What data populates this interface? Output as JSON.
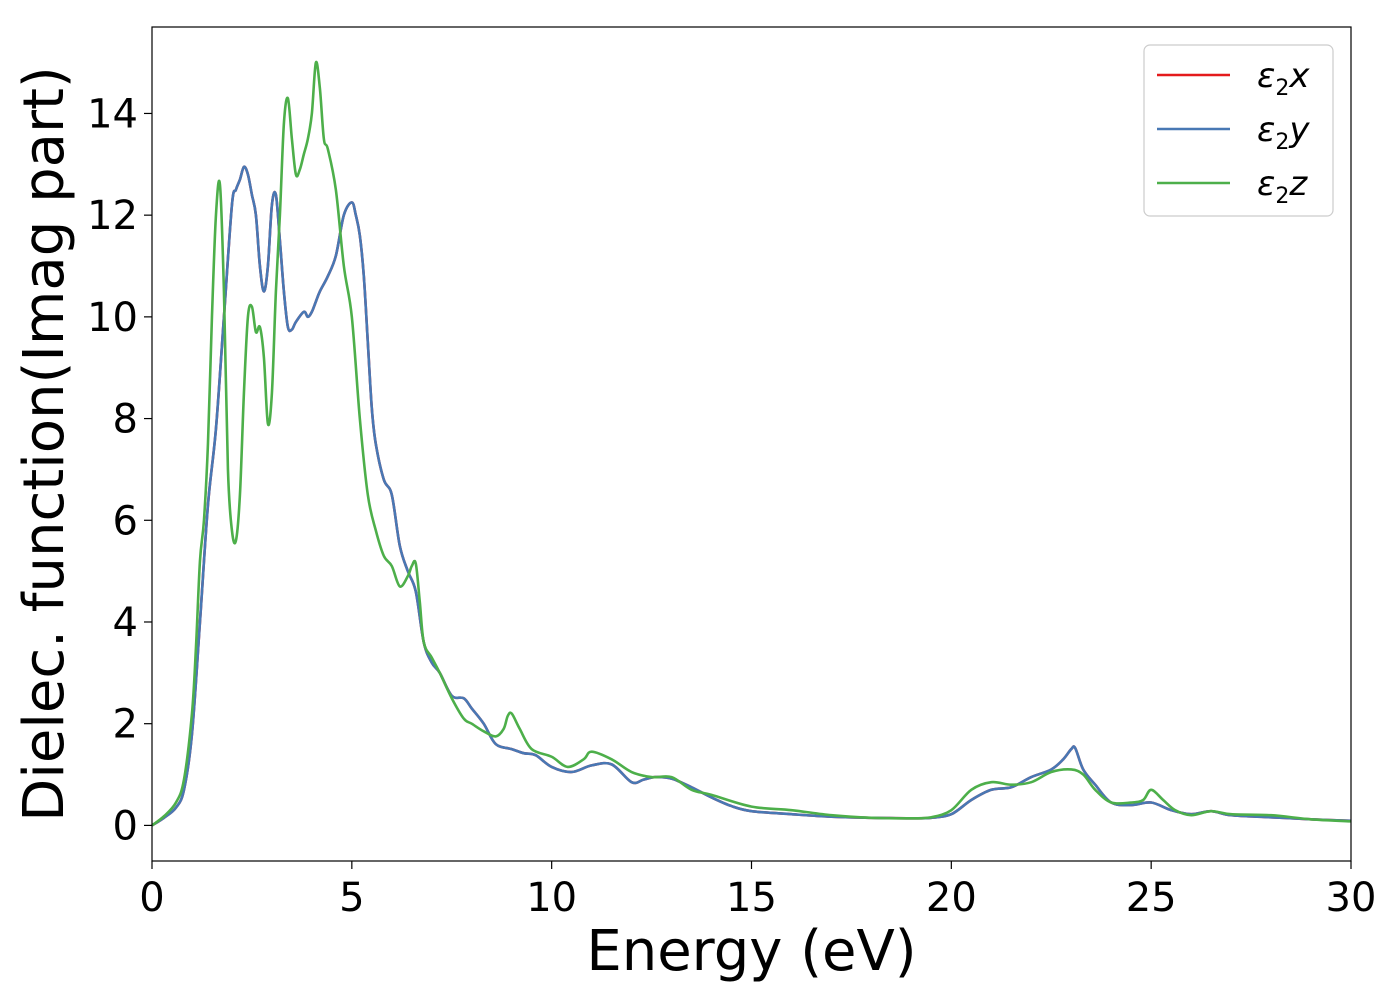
{
  "chart_data": {
    "type": "line",
    "xlabel": "Energy (eV)",
    "ylabel": "Dielec. function(Imag part)",
    "xlim": [
      0,
      30
    ],
    "ylim": [
      -0.7,
      15.7
    ],
    "xticks": [
      0,
      5,
      10,
      15,
      20,
      25,
      30
    ],
    "yticks": [
      0,
      2,
      4,
      6,
      8,
      10,
      12,
      14
    ],
    "grid": false,
    "legend_position": "top-right",
    "series": [
      {
        "name": "ε2x",
        "color": "#e41a1c",
        "x": [
          0,
          0.3,
          0.6,
          0.8,
          1.0,
          1.2,
          1.4,
          1.6,
          1.8,
          2.0,
          2.1,
          2.2,
          2.3,
          2.4,
          2.5,
          2.6,
          2.7,
          2.8,
          2.9,
          3.0,
          3.1,
          3.2,
          3.3,
          3.4,
          3.5,
          3.6,
          3.8,
          3.9,
          4.0,
          4.1,
          4.2,
          4.4,
          4.6,
          4.8,
          5.0,
          5.1,
          5.2,
          5.3,
          5.4,
          5.5,
          5.6,
          5.8,
          6.0,
          6.2,
          6.4,
          6.6,
          6.8,
          7.0,
          7.2,
          7.5,
          7.8,
          8.0,
          8.3,
          8.6,
          9.0,
          9.3,
          9.6,
          10.0,
          10.5,
          11.0,
          11.5,
          12.0,
          12.3,
          12.6,
          13.0,
          13.5,
          14.0,
          14.5,
          15.0,
          16.0,
          17.0,
          18.0,
          19.0,
          19.5,
          20.0,
          20.5,
          21.0,
          21.5,
          22.0,
          22.5,
          22.8,
          23.0,
          23.1,
          23.3,
          23.6,
          24.0,
          24.5,
          25.0,
          25.5,
          26.0,
          26.5,
          27.0,
          28.0,
          29.0,
          30.0
        ],
        "values": [
          0.0,
          0.15,
          0.35,
          0.7,
          1.8,
          4.0,
          6.3,
          7.8,
          10.0,
          12.2,
          12.5,
          12.7,
          12.95,
          12.8,
          12.4,
          12.0,
          11.0,
          10.5,
          11.0,
          12.2,
          12.4,
          11.5,
          10.5,
          9.8,
          9.75,
          9.9,
          10.1,
          10.0,
          10.1,
          10.3,
          10.5,
          10.8,
          11.2,
          12.0,
          12.25,
          12.0,
          11.6,
          10.8,
          9.5,
          8.2,
          7.5,
          6.8,
          6.5,
          5.5,
          5.0,
          4.6,
          3.6,
          3.2,
          3.0,
          2.55,
          2.5,
          2.3,
          2.0,
          1.6,
          1.5,
          1.42,
          1.38,
          1.15,
          1.05,
          1.18,
          1.2,
          0.85,
          0.9,
          0.95,
          0.92,
          0.75,
          0.55,
          0.38,
          0.28,
          0.22,
          0.17,
          0.15,
          0.14,
          0.15,
          0.22,
          0.5,
          0.7,
          0.75,
          0.95,
          1.1,
          1.3,
          1.5,
          1.52,
          1.1,
          0.8,
          0.45,
          0.4,
          0.45,
          0.3,
          0.22,
          0.28,
          0.2,
          0.16,
          0.12,
          0.09
        ]
      },
      {
        "name": "ε2y",
        "color": "#4878b4",
        "x": [
          0,
          0.3,
          0.6,
          0.8,
          1.0,
          1.2,
          1.4,
          1.6,
          1.8,
          2.0,
          2.1,
          2.2,
          2.3,
          2.4,
          2.5,
          2.6,
          2.7,
          2.8,
          2.9,
          3.0,
          3.1,
          3.2,
          3.3,
          3.4,
          3.5,
          3.6,
          3.8,
          3.9,
          4.0,
          4.1,
          4.2,
          4.4,
          4.6,
          4.8,
          5.0,
          5.1,
          5.2,
          5.3,
          5.4,
          5.5,
          5.6,
          5.8,
          6.0,
          6.2,
          6.4,
          6.6,
          6.8,
          7.0,
          7.2,
          7.5,
          7.8,
          8.0,
          8.3,
          8.6,
          9.0,
          9.3,
          9.6,
          10.0,
          10.5,
          11.0,
          11.5,
          12.0,
          12.3,
          12.6,
          13.0,
          13.5,
          14.0,
          14.5,
          15.0,
          16.0,
          17.0,
          18.0,
          19.0,
          19.5,
          20.0,
          20.5,
          21.0,
          21.5,
          22.0,
          22.5,
          22.8,
          23.0,
          23.1,
          23.3,
          23.6,
          24.0,
          24.5,
          25.0,
          25.5,
          26.0,
          26.5,
          27.0,
          28.0,
          29.0,
          30.0
        ],
        "values": [
          0.0,
          0.15,
          0.35,
          0.7,
          1.8,
          4.0,
          6.3,
          7.8,
          10.0,
          12.2,
          12.5,
          12.7,
          12.95,
          12.8,
          12.4,
          12.0,
          11.0,
          10.5,
          11.0,
          12.2,
          12.4,
          11.5,
          10.5,
          9.8,
          9.75,
          9.9,
          10.1,
          10.0,
          10.1,
          10.3,
          10.5,
          10.8,
          11.2,
          12.0,
          12.25,
          12.0,
          11.6,
          10.8,
          9.5,
          8.2,
          7.5,
          6.8,
          6.5,
          5.5,
          5.0,
          4.6,
          3.6,
          3.2,
          3.0,
          2.55,
          2.5,
          2.3,
          2.0,
          1.6,
          1.5,
          1.42,
          1.38,
          1.15,
          1.05,
          1.18,
          1.2,
          0.85,
          0.9,
          0.95,
          0.92,
          0.75,
          0.55,
          0.38,
          0.28,
          0.22,
          0.17,
          0.15,
          0.14,
          0.15,
          0.22,
          0.5,
          0.7,
          0.75,
          0.95,
          1.1,
          1.3,
          1.5,
          1.52,
          1.1,
          0.8,
          0.45,
          0.4,
          0.45,
          0.3,
          0.22,
          0.28,
          0.2,
          0.16,
          0.12,
          0.09
        ]
      },
      {
        "name": "ε2z",
        "color": "#4daf4a",
        "x": [
          0,
          0.3,
          0.6,
          0.8,
          1.0,
          1.1,
          1.2,
          1.3,
          1.4,
          1.5,
          1.6,
          1.7,
          1.8,
          1.9,
          2.0,
          2.1,
          2.2,
          2.3,
          2.4,
          2.5,
          2.6,
          2.7,
          2.8,
          2.9,
          3.0,
          3.1,
          3.2,
          3.3,
          3.4,
          3.5,
          3.6,
          3.7,
          3.8,
          3.9,
          4.0,
          4.1,
          4.2,
          4.3,
          4.4,
          4.6,
          4.8,
          5.0,
          5.2,
          5.4,
          5.6,
          5.8,
          6.0,
          6.2,
          6.4,
          6.5,
          6.6,
          6.7,
          6.8,
          7.0,
          7.2,
          7.5,
          7.8,
          8.0,
          8.3,
          8.6,
          8.8,
          8.9,
          9.0,
          9.2,
          9.5,
          10.0,
          10.4,
          10.8,
          11.0,
          11.5,
          12.0,
          12.5,
          13.0,
          13.5,
          14.0,
          15.0,
          16.0,
          17.0,
          18.0,
          19.0,
          19.5,
          20.0,
          20.5,
          21.0,
          21.5,
          22.0,
          22.5,
          23.0,
          23.3,
          23.6,
          24.0,
          24.5,
          24.8,
          25.0,
          25.3,
          25.6,
          26.0,
          26.5,
          27.0,
          28.0,
          29.0,
          30.0
        ],
        "values": [
          0.0,
          0.18,
          0.45,
          0.9,
          2.2,
          3.5,
          5.2,
          6.0,
          7.5,
          10.0,
          12.0,
          12.6,
          10.5,
          7.0,
          5.8,
          5.6,
          6.5,
          8.5,
          10.0,
          10.2,
          9.7,
          9.8,
          9.2,
          7.9,
          8.5,
          10.5,
          12.0,
          13.8,
          14.3,
          13.5,
          12.8,
          12.9,
          13.2,
          13.5,
          14.0,
          15.0,
          14.5,
          13.5,
          13.3,
          12.5,
          11.0,
          10.0,
          8.0,
          6.5,
          5.8,
          5.3,
          5.1,
          4.7,
          4.9,
          5.1,
          5.15,
          4.4,
          3.6,
          3.3,
          3.0,
          2.5,
          2.1,
          2.0,
          1.85,
          1.75,
          1.9,
          2.15,
          2.2,
          1.9,
          1.5,
          1.35,
          1.15,
          1.3,
          1.45,
          1.3,
          1.05,
          0.95,
          0.95,
          0.7,
          0.6,
          0.37,
          0.3,
          0.2,
          0.15,
          0.14,
          0.16,
          0.3,
          0.7,
          0.85,
          0.8,
          0.85,
          1.05,
          1.1,
          1.0,
          0.7,
          0.45,
          0.45,
          0.5,
          0.7,
          0.5,
          0.3,
          0.2,
          0.28,
          0.22,
          0.2,
          0.12,
          0.08
        ]
      }
    ]
  }
}
